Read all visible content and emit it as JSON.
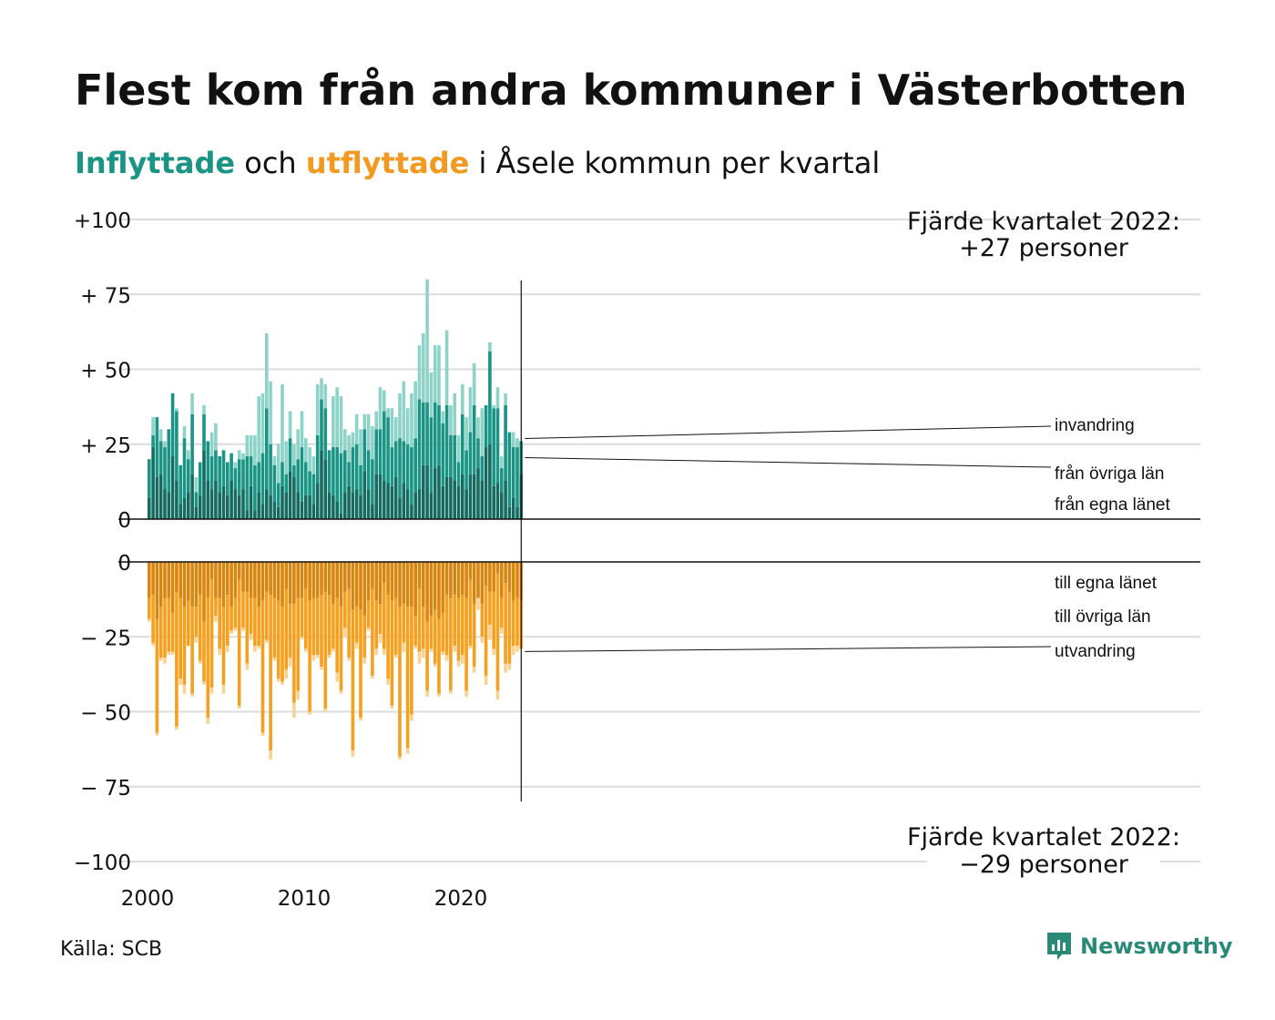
{
  "title": "Flest kom från andra kommuner i Västerbotten",
  "subtitle": {
    "in_word": "Inflyttade",
    "middle": " och ",
    "out_word": "utflyttade",
    "rest": " i Åsele kommun per kvartal"
  },
  "source": "Källa: SCB",
  "logo_text": "Newsworthy",
  "annotations": {
    "top_line1": "Fjärde kvartalet 2022:",
    "top_line2": "+27 personer",
    "bottom_line1": "Fjärde kvartalet 2022:",
    "bottom_line2": "−29 personer"
  },
  "colors": {
    "in_own": "#156b60",
    "in_other": "#1a9484",
    "in_immig": "#8ed3c8",
    "out_own": "#d9860f",
    "out_other": "#f5a01e",
    "out_emig": "#f8d394",
    "grid": "#dcdcdc",
    "axis": "#111111"
  },
  "chart_data": {
    "type": "bar",
    "stacked": true,
    "diverging": true,
    "x_start": "2000 Q1",
    "x_end": "2022 Q4",
    "x_ticks": [
      "2000",
      "2010",
      "2020"
    ],
    "top_axis": {
      "ticks": [
        "+100",
        "+ 75",
        "+ 50",
        "+ 25",
        "0"
      ],
      "ylim": [
        0,
        100
      ]
    },
    "bottom_axis": {
      "ticks": [
        "0",
        "− 25",
        "− 50",
        "− 75",
        "−100"
      ],
      "ylim": [
        -100,
        0
      ]
    },
    "in_series_labels": [
      "från egna länet",
      "från övriga län",
      "invandring"
    ],
    "out_series_labels": [
      "till egna länet",
      "till övriga län",
      "utvandring"
    ],
    "in_own": [
      7,
      24,
      14,
      15,
      10,
      9,
      21,
      13,
      5,
      7,
      9,
      15,
      4,
      8,
      23,
      13,
      10,
      13,
      9,
      11,
      8,
      13,
      10,
      8,
      10,
      3,
      11,
      3,
      9,
      5,
      10,
      8,
      6,
      4,
      11,
      9,
      16,
      14,
      9,
      6,
      8,
      8,
      5,
      12,
      23,
      20,
      9,
      8,
      6,
      2,
      9,
      11,
      9,
      10,
      8,
      16,
      10,
      5,
      15,
      15,
      13,
      12,
      11,
      14,
      7,
      12,
      10,
      5,
      9,
      10,
      18,
      18,
      9,
      17,
      18,
      11,
      14,
      14,
      13,
      11,
      15,
      10,
      15,
      15,
      17,
      13,
      24,
      25,
      11,
      12,
      9,
      13,
      4,
      7,
      4,
      15
    ],
    "in_other": [
      13,
      4,
      20,
      11,
      14,
      21,
      21,
      23,
      13,
      20,
      11,
      20,
      5,
      11,
      12,
      13,
      11,
      10,
      12,
      12,
      11,
      9,
      7,
      12,
      10,
      18,
      10,
      15,
      10,
      17,
      27,
      17,
      12,
      8,
      8,
      6,
      11,
      4,
      11,
      18,
      11,
      8,
      10,
      16,
      17,
      17,
      14,
      16,
      18,
      20,
      14,
      8,
      15,
      15,
      10,
      14,
      13,
      15,
      15,
      15,
      23,
      22,
      13,
      12,
      20,
      14,
      15,
      19,
      18,
      30,
      21,
      21,
      25,
      22,
      20,
      21,
      24,
      14,
      15,
      8,
      20,
      13,
      14,
      23,
      10,
      8,
      14,
      31,
      26,
      25,
      8,
      25,
      25,
      17,
      20,
      11
    ],
    "in_immig": [
      0,
      6,
      0,
      4,
      2,
      0,
      0,
      1,
      0,
      4,
      3,
      7,
      5,
      0,
      3,
      0,
      8,
      9,
      0,
      0,
      0,
      0,
      2,
      3,
      2,
      7,
      7,
      10,
      22,
      20,
      25,
      21,
      3,
      13,
      26,
      11,
      9,
      7,
      10,
      12,
      8,
      8,
      6,
      17,
      7,
      8,
      0,
      17,
      20,
      19,
      7,
      9,
      5,
      10,
      12,
      5,
      12,
      11,
      6,
      14,
      7,
      3,
      13,
      8,
      15,
      20,
      12,
      18,
      19,
      18,
      23,
      41,
      15,
      19,
      20,
      4,
      25,
      10,
      14,
      9,
      10,
      11,
      15,
      14,
      7,
      16,
      0,
      3,
      1,
      7,
      4,
      4,
      0,
      5,
      3,
      0
    ],
    "out_own": [
      12,
      11,
      19,
      15,
      12,
      12,
      17,
      10,
      12,
      15,
      13,
      15,
      15,
      11,
      20,
      12,
      6,
      12,
      12,
      15,
      11,
      15,
      12,
      6,
      10,
      10,
      12,
      12,
      15,
      13,
      10,
      11,
      12,
      13,
      15,
      9,
      14,
      14,
      12,
      12,
      9,
      13,
      12,
      12,
      11,
      10,
      11,
      14,
      12,
      15,
      10,
      9,
      16,
      15,
      16,
      18,
      13,
      9,
      13,
      14,
      7,
      11,
      13,
      12,
      15,
      14,
      15,
      15,
      18,
      9,
      15,
      20,
      18,
      16,
      19,
      17,
      11,
      12,
      11,
      12,
      11,
      12,
      6,
      14,
      12,
      14,
      8,
      10,
      10,
      4,
      12,
      7,
      10,
      13,
      12,
      13
    ],
    "out_own_other": [
      19,
      27,
      57,
      32,
      32,
      30,
      30,
      55,
      39,
      41,
      28,
      44,
      25,
      33,
      40,
      52,
      42,
      18,
      29,
      41,
      28,
      23,
      22,
      48,
      22,
      34,
      24,
      28,
      28,
      57,
      26,
      63,
      32,
      39,
      40,
      36,
      32,
      47,
      43,
      25,
      29,
      50,
      31,
      31,
      35,
      49,
      31,
      29,
      37,
      43,
      22,
      32,
      63,
      27,
      52,
      32,
      22,
      38,
      29,
      24,
      29,
      39,
      48,
      31,
      65,
      27,
      62,
      51,
      28,
      30,
      29,
      43,
      29,
      34,
      44,
      30,
      31,
      43,
      28,
      33,
      31,
      43,
      28,
      35,
      10,
      25,
      38,
      21,
      29,
      43,
      22,
      34,
      34,
      28,
      28,
      29
    ],
    "out_emig": [
      1,
      1,
      1,
      1,
      2,
      1,
      1,
      1,
      2,
      3,
      0,
      1,
      2,
      1,
      1,
      2,
      2,
      2,
      2,
      3,
      2,
      1,
      1,
      1,
      1,
      2,
      2,
      2,
      1,
      1,
      1,
      3,
      1,
      1,
      1,
      3,
      3,
      5,
      3,
      1,
      1,
      1,
      2,
      1,
      1,
      1,
      1,
      1,
      3,
      1,
      3,
      1,
      2,
      2,
      1,
      2,
      1,
      1,
      2,
      3,
      2,
      2,
      1,
      1,
      1,
      3,
      2,
      2,
      1,
      4,
      3,
      2,
      1,
      1,
      1,
      1,
      2,
      1,
      2,
      2,
      3,
      2,
      1,
      2,
      4,
      2,
      3,
      5,
      2,
      3,
      2,
      3,
      2,
      3,
      2,
      0
    ]
  }
}
